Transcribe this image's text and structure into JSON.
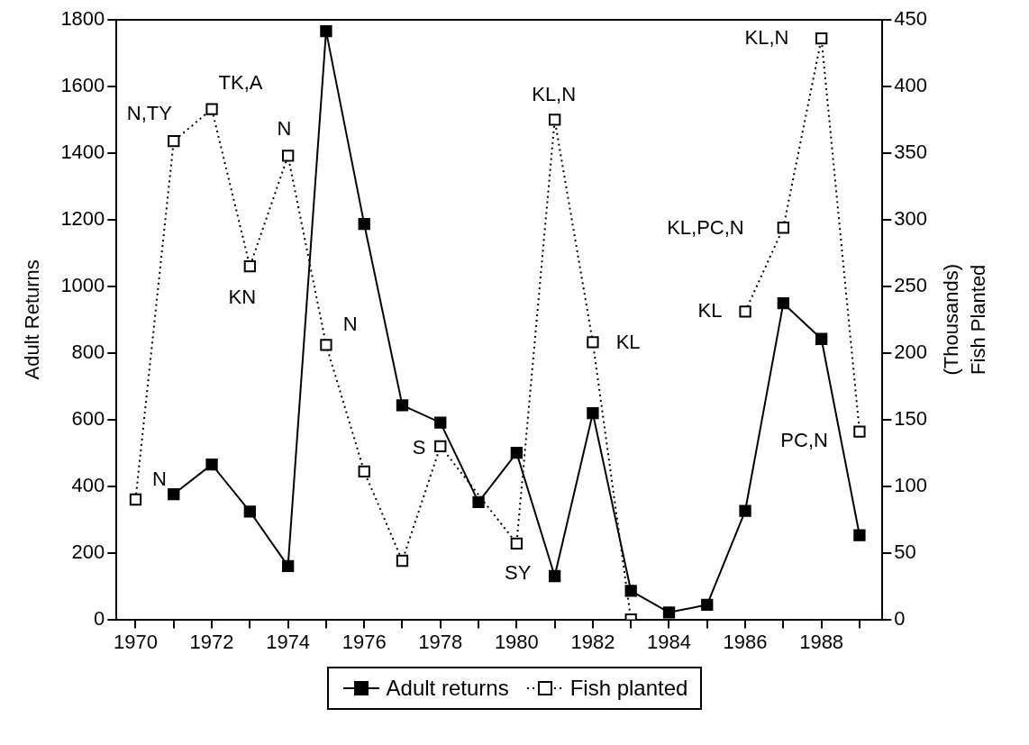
{
  "chart_data": {
    "type": "line",
    "xlabel": null,
    "ylabel": "Adult Returns",
    "y2label": "(Thousands)\nFish Planted",
    "x": [
      1970,
      1971,
      1972,
      1973,
      1974,
      1975,
      1976,
      1977,
      1978,
      1979,
      1980,
      1981,
      1982,
      1983,
      1984,
      1985,
      1986,
      1987,
      1988,
      1989
    ],
    "series": [
      {
        "name": "Adult returns",
        "color": "#000000",
        "line_style": "solid",
        "values": [
          null,
          376,
          465,
          324,
          160,
          1766,
          1187,
          643,
          591,
          352,
          500,
          130,
          619,
          86,
          21,
          44,
          326,
          949,
          842,
          253
        ]
      },
      {
        "name": "Fish planted",
        "color": "#000000",
        "line_style": "dotted",
        "axis": "y2",
        "values": [
          90,
          359,
          383,
          265,
          348,
          206,
          111,
          44,
          130,
          null,
          57,
          375,
          208,
          0,
          null,
          null,
          231,
          294,
          436,
          141
        ]
      }
    ],
    "xlim": [
      1969.5,
      1989.6
    ],
    "xticks": [
      1970,
      {
        "value": 1971,
        "label": null
      },
      1972,
      {
        "value": 1973,
        "label": null
      },
      1974,
      {
        "value": 1975,
        "label": null
      },
      1976,
      {
        "value": 1977,
        "label": null
      },
      1978,
      {
        "value": 1979,
        "label": null
      },
      1980,
      {
        "value": 1981,
        "label": null
      },
      1982,
      {
        "value": 1983,
        "label": null
      },
      1984,
      {
        "value": 1985,
        "label": null
      },
      1986,
      {
        "value": 1987,
        "label": null
      },
      1988,
      {
        "value": 1989,
        "label": null
      }
    ],
    "ylim": [
      0,
      1800
    ],
    "yticks": [
      0,
      200,
      400,
      600,
      800,
      1000,
      1200,
      1400,
      1600,
      1800
    ],
    "y2lim": [
      0,
      450
    ],
    "y2ticks": [
      0,
      50,
      100,
      150,
      200,
      250,
      300,
      350,
      400,
      450
    ],
    "annotations": [
      "N",
      "N,TY",
      "TK,A",
      "KN",
      "N",
      "N",
      "S",
      "SY",
      "KL,N",
      "KL",
      "KL",
      "KL,PC,N",
      "KL,N",
      "PC,N"
    ],
    "grid": false,
    "legend": "bottom",
    "marker": "square"
  }
}
